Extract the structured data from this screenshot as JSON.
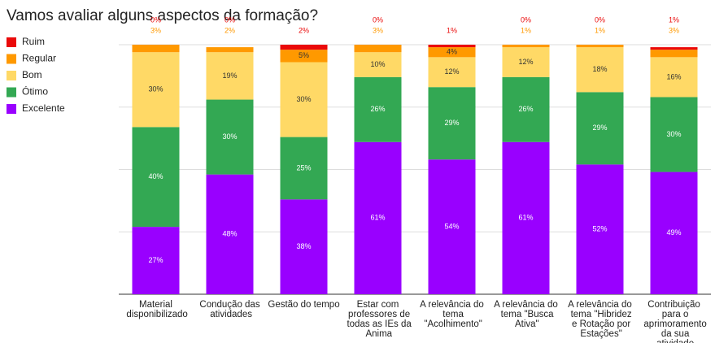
{
  "chart_data": {
    "type": "stacked_bar",
    "title": "Vamos avaliar alguns aspectos da formação?",
    "categories": [
      "Material disponibilizado",
      "Condução das atividades",
      "Gestão do tempo",
      "Estar com professores de todas as IEs da Anima",
      "A relevância do tema \"Acolhimento\"",
      "A relevância do tema \"Busca Ativa\"",
      "A relevância do tema \"Hibridez e Rotação por Estações\"",
      "Contribuição para o aprimoramento da sua atividade docente"
    ],
    "series": [
      {
        "name": "Ruim",
        "color": "#ea0a0a",
        "values": [
          0,
          0,
          2,
          0,
          1,
          0,
          0,
          1
        ],
        "value_labels": [
          "0%",
          "0%",
          "2%",
          "0%",
          "1%",
          "0%",
          "0%",
          "1%"
        ]
      },
      {
        "name": "Regular",
        "color": "#ff9900",
        "values": [
          3,
          2,
          5,
          3,
          4,
          1,
          1,
          3
        ],
        "value_labels": [
          "3%",
          "2%",
          "5%",
          "3%",
          "4%",
          "1%",
          "1%",
          "3%"
        ]
      },
      {
        "name": "Bom",
        "color": "#ffd966",
        "values": [
          30,
          19,
          30,
          10,
          12,
          12,
          18,
          16
        ],
        "value_labels": [
          "30%",
          "19%",
          "30%",
          "10%",
          "12%",
          "12%",
          "18%",
          "16%"
        ]
      },
      {
        "name": "Ótimo",
        "color": "#33a853",
        "values": [
          40,
          30,
          25,
          26,
          29,
          26,
          29,
          30
        ],
        "value_labels": [
          "40%",
          "30%",
          "25%",
          "26%",
          "29%",
          "26%",
          "29%",
          "30%"
        ]
      },
      {
        "name": "Excelente",
        "color": "#9900ff",
        "values": [
          27,
          48,
          38,
          61,
          54,
          61,
          52,
          49
        ],
        "value_labels": [
          "27%",
          "48%",
          "38%",
          "61%",
          "54%",
          "61%",
          "52%",
          "49%"
        ]
      }
    ],
    "ylim": [
      0,
      100
    ],
    "yticks": [
      0,
      25,
      50,
      75,
      100
    ],
    "grid": true,
    "legend": "left"
  }
}
